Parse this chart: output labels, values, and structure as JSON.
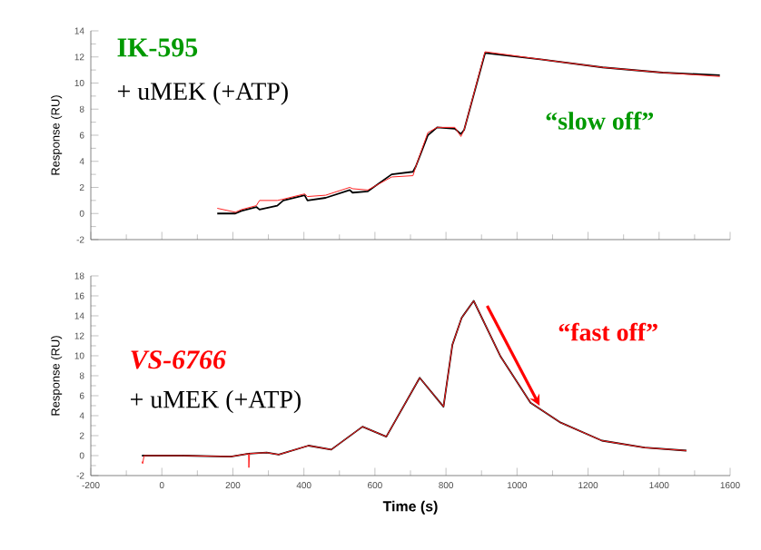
{
  "chart_data": [
    {
      "type": "line",
      "ylabel": "Response (RU)",
      "annotations": [
        "IK-595",
        "+ uMEK (+ATP)",
        "“slow off”"
      ],
      "xlim": [
        -200,
        1600
      ],
      "ylim": [
        -2,
        14
      ],
      "xticks": [
        -200,
        0,
        200,
        400,
        600,
        800,
        1000,
        1200,
        1400,
        1600
      ],
      "yticks": [
        -2,
        0,
        2,
        4,
        6,
        8,
        10,
        12,
        14
      ],
      "tick_labels": "y",
      "series": [
        {
          "color": "#000000",
          "x": [
            156,
            207,
            224,
            266,
            275,
            325,
            342,
            402,
            410,
            461,
            529,
            537,
            580,
            647,
            707,
            715,
            749,
            775,
            825,
            842,
            851,
            910,
            1071,
            1241,
            1410,
            1571
          ],
          "values": [
            0,
            0,
            0.2,
            0.5,
            0.3,
            0.6,
            1.0,
            1.4,
            1.0,
            1.2,
            1.8,
            1.6,
            1.7,
            3.0,
            3.2,
            3.6,
            6.0,
            6.6,
            6.5,
            6.1,
            6.4,
            12.3,
            11.8,
            11.2,
            10.8,
            10.6
          ]
        },
        {
          "color": "#ff2020",
          "x": [
            156,
            207,
            224,
            266,
            275,
            325,
            342,
            402,
            410,
            461,
            529,
            537,
            580,
            647,
            707,
            715,
            749,
            775,
            825,
            842,
            851,
            910,
            1071,
            1241,
            1410,
            1571
          ],
          "values": [
            0.4,
            0.1,
            0.3,
            0.6,
            1.0,
            1.0,
            1.1,
            1.5,
            1.3,
            1.4,
            2.0,
            1.9,
            1.8,
            2.8,
            2.9,
            3.6,
            6.2,
            6.6,
            6.6,
            5.9,
            6.4,
            12.4,
            11.8,
            11.2,
            10.8,
            10.5
          ]
        }
      ]
    },
    {
      "type": "line",
      "xlabel": "Time (s)",
      "ylabel": "Response (RU)",
      "annotations": [
        "VS-6766",
        "+ uMEK (+ATP)",
        "“fast off”"
      ],
      "xlim": [
        -200,
        1600
      ],
      "ylim": [
        -2,
        18
      ],
      "xticks": [
        -200,
        0,
        200,
        400,
        600,
        800,
        1000,
        1200,
        1400,
        1600
      ],
      "yticks": [
        -2,
        0,
        2,
        4,
        6,
        8,
        10,
        12,
        14,
        16,
        18
      ],
      "series": [
        {
          "color": "#000000",
          "x": [
            -56,
            -50,
            59,
            194,
            244,
            295,
            329,
            413,
            477,
            565,
            632,
            726,
            793,
            818,
            844,
            878,
            954,
            1038,
            1123,
            1239,
            1359,
            1477
          ],
          "values": [
            0,
            0,
            0,
            -0.1,
            0.2,
            0.3,
            0.1,
            1.0,
            0.6,
            2.9,
            1.9,
            7.8,
            4.9,
            11.1,
            13.8,
            15.5,
            9.9,
            5.3,
            3.3,
            1.5,
            0.8,
            0.5
          ]
        },
        {
          "color": "#ff2020",
          "x": [
            -56,
            -54,
            -50,
            59,
            194,
            244,
            245,
            247,
            295,
            329,
            413,
            477,
            565,
            632,
            726,
            793,
            818,
            844,
            878,
            954,
            1038,
            1123,
            1239,
            1359,
            1477
          ],
          "values": [
            -0.6,
            -0.8,
            0,
            0,
            -0.1,
            0.2,
            -1.2,
            0.2,
            0.3,
            0.1,
            1.0,
            0.6,
            2.9,
            1.9,
            7.8,
            4.9,
            11.1,
            13.8,
            15.5,
            9.9,
            5.3,
            3.3,
            1.5,
            0.8,
            0.5
          ]
        }
      ]
    }
  ]
}
